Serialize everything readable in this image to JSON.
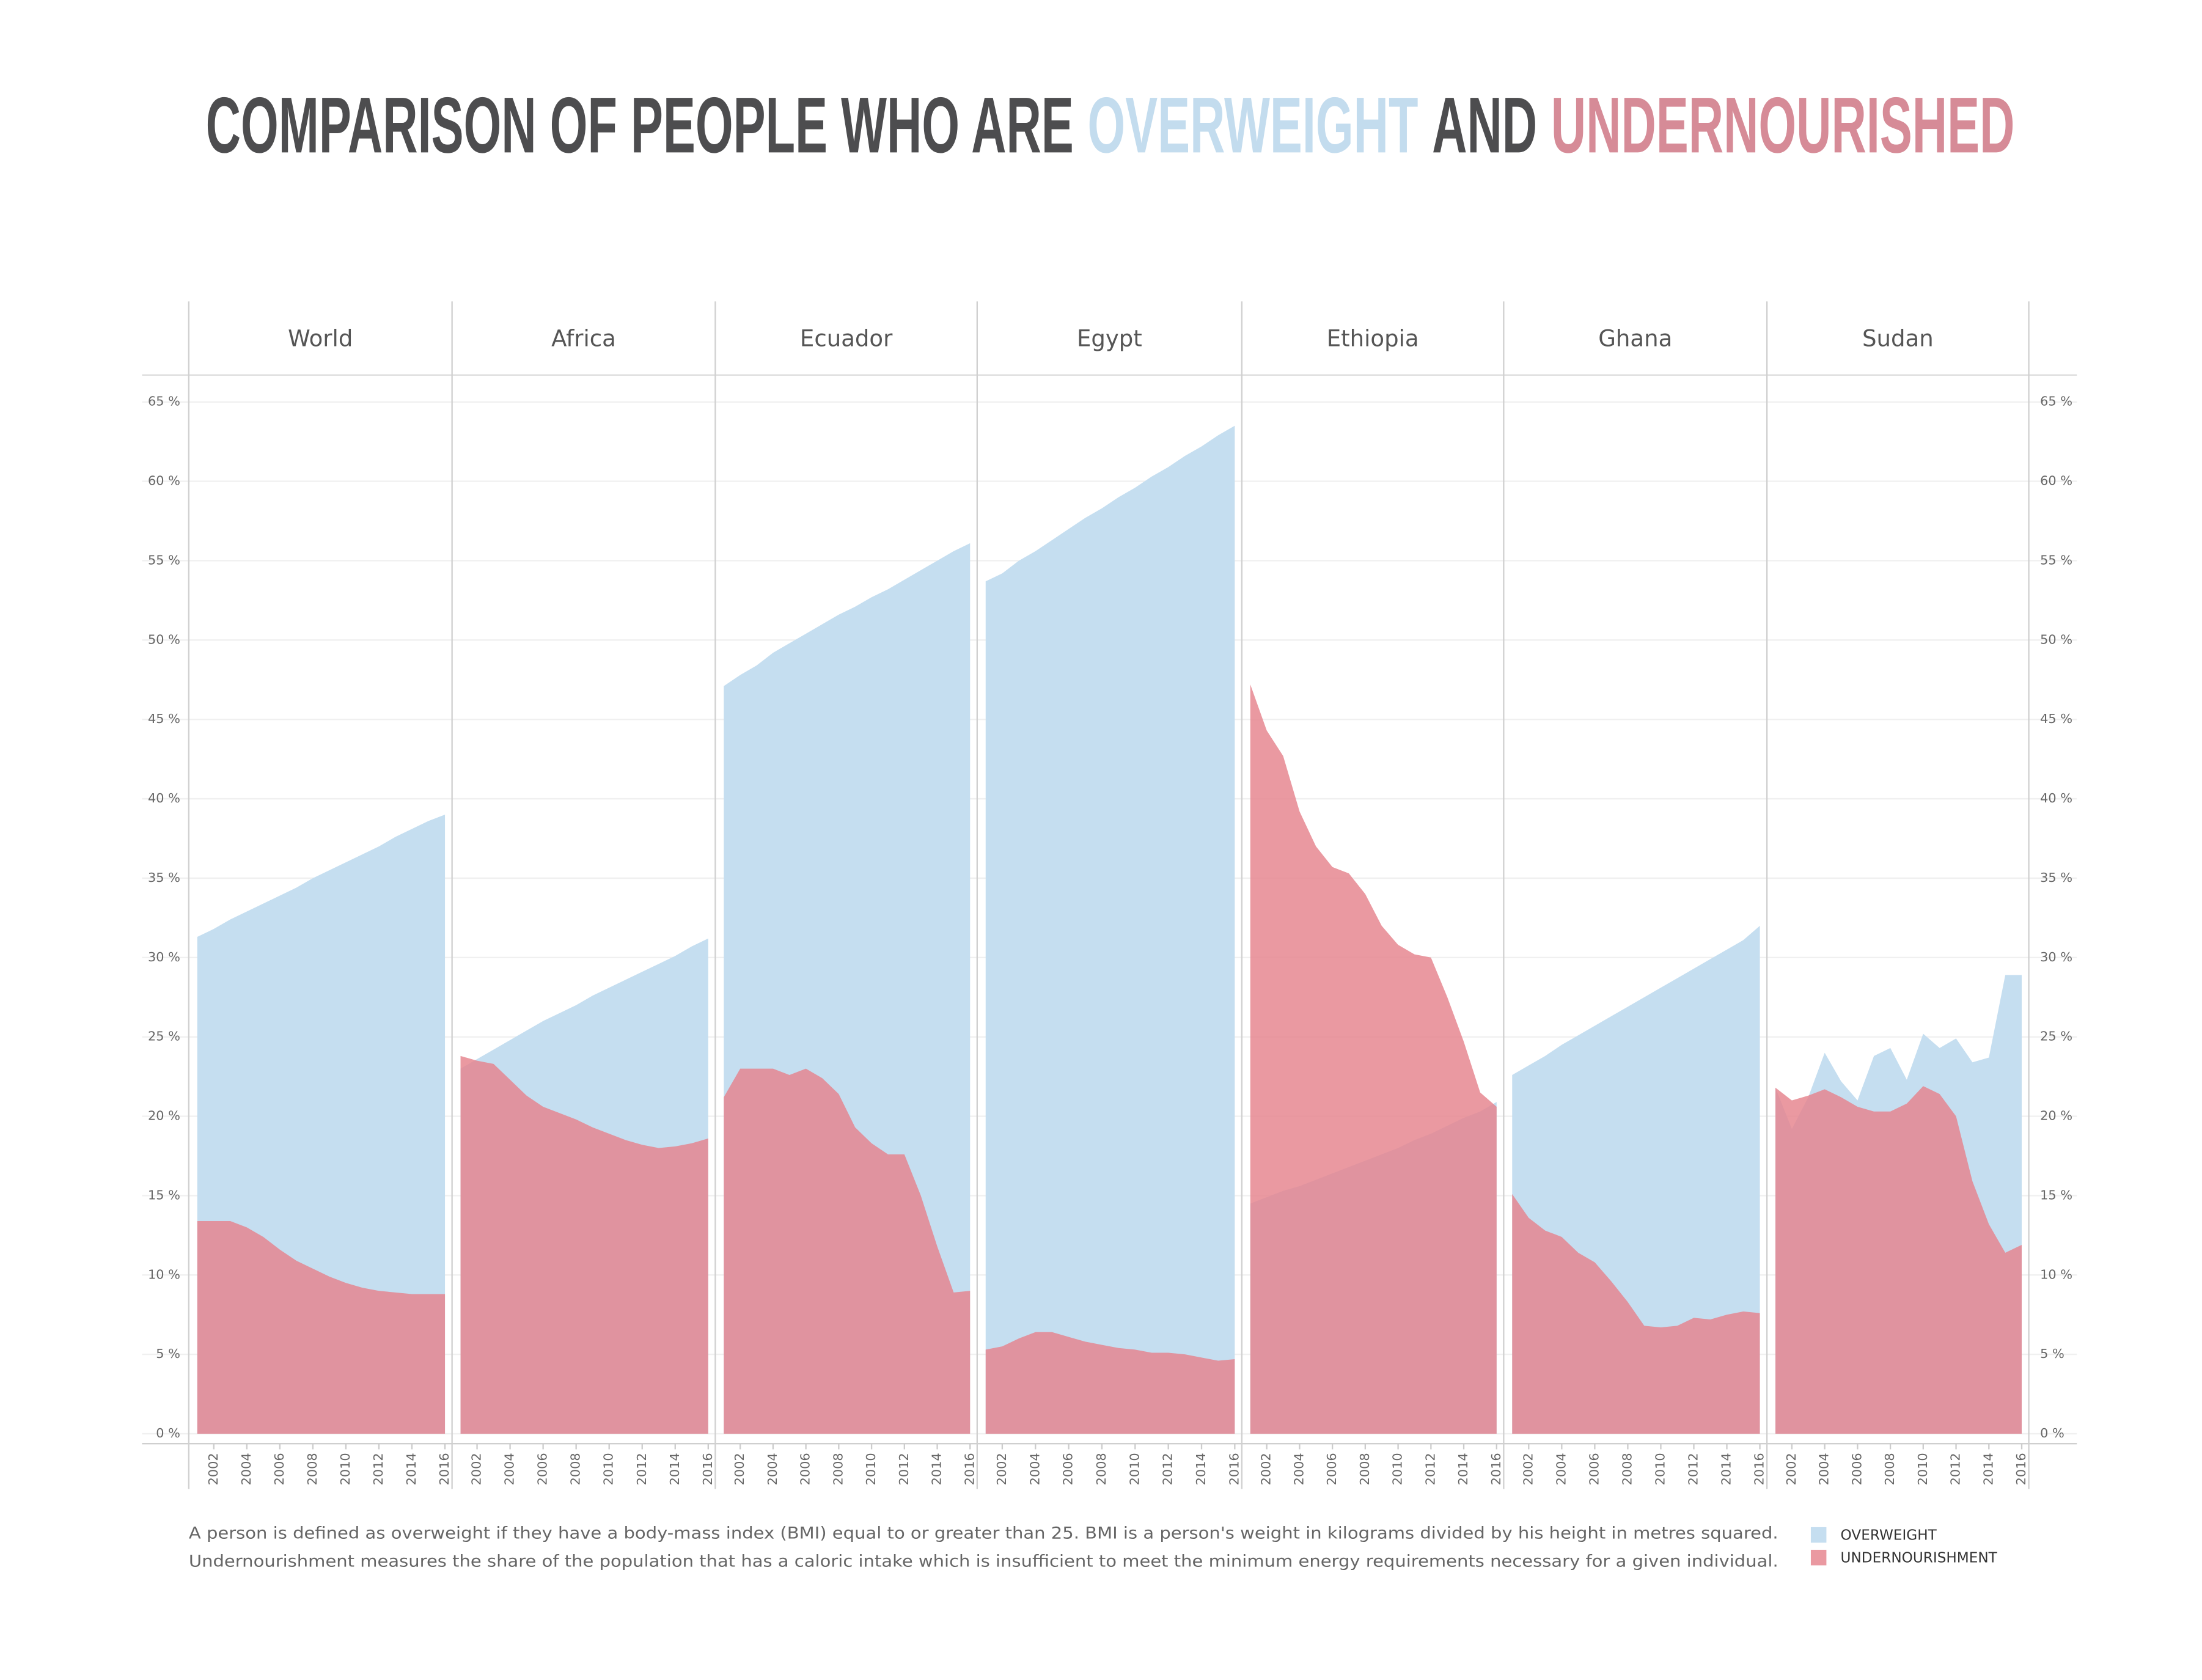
{
  "chart_data": {
    "type": "area",
    "title": [
      "COMPARISON OF PEOPLE WHO ARE",
      "OVERWEIGHT",
      "AND",
      "UNDERNOURISHED"
    ],
    "title_colors": [
      "#4d4d4f",
      "#c3dcee",
      "#4d4d4f",
      "#d68b97"
    ],
    "panels": [
      "World",
      "Africa",
      "Ecuador",
      "Egypt",
      "Ethiopia",
      "Ghana",
      "Sudan"
    ],
    "x": [
      2001,
      2002,
      2003,
      2004,
      2005,
      2006,
      2007,
      2008,
      2009,
      2010,
      2011,
      2012,
      2013,
      2014,
      2015,
      2016
    ],
    "xlim": [
      2001,
      2016
    ],
    "xticks": [
      2002,
      2004,
      2006,
      2008,
      2010,
      2012,
      2014,
      2016
    ],
    "ylim": [
      0,
      65
    ],
    "yticks": [
      {
        "value": 0,
        "label": "0 %"
      },
      {
        "value": 5,
        "label": "5 %"
      },
      {
        "value": 10,
        "label": "10 %"
      },
      {
        "value": 15,
        "label": "15 %"
      },
      {
        "value": 20,
        "label": "20 %"
      },
      {
        "value": 25,
        "label": "25 %"
      },
      {
        "value": 30,
        "label": "30 %"
      },
      {
        "value": 35,
        "label": "35 %"
      },
      {
        "value": 40,
        "label": "40 %"
      },
      {
        "value": 45,
        "label": "45 %"
      },
      {
        "value": 50,
        "label": "50 %"
      },
      {
        "value": 55,
        "label": "55 %"
      },
      {
        "value": 60,
        "label": "60 %"
      },
      {
        "value": 65,
        "label": "65 %"
      }
    ],
    "grid": true,
    "series": [
      {
        "name": "OVERWEIGHT",
        "color": "#c5def0",
        "opacity": 1,
        "values": [
          [
            31.3,
            31.8,
            32.4,
            32.9,
            33.4,
            33.9,
            34.4,
            35.0,
            35.5,
            36.0,
            36.5,
            37.0,
            37.6,
            38.1,
            38.6,
            39.0
          ],
          [
            23.0,
            23.6,
            24.2,
            24.8,
            25.4,
            26.0,
            26.5,
            27.0,
            27.6,
            28.1,
            28.6,
            29.1,
            29.6,
            30.1,
            30.7,
            31.2
          ],
          [
            47.1,
            47.8,
            48.4,
            49.2,
            49.8,
            50.4,
            51.0,
            51.6,
            52.1,
            52.7,
            53.2,
            53.8,
            54.4,
            55.0,
            55.6,
            56.1
          ],
          [
            53.7,
            54.2,
            55.0,
            55.6,
            56.3,
            57.0,
            57.7,
            58.3,
            59.0,
            59.6,
            60.3,
            60.9,
            61.6,
            62.2,
            62.9,
            63.5
          ],
          [
            14.5,
            14.9,
            15.3,
            15.6,
            16.0,
            16.4,
            16.8,
            17.2,
            17.6,
            18.0,
            18.5,
            18.9,
            19.4,
            19.9,
            20.3,
            20.9
          ],
          [
            22.6,
            23.2,
            23.8,
            24.5,
            25.1,
            25.7,
            26.3,
            26.9,
            27.5,
            28.1,
            28.7,
            29.3,
            29.9,
            30.5,
            31.1,
            32.0
          ],
          [
            21.8,
            19.2,
            21.2,
            24.0,
            22.2,
            21.0,
            23.8,
            24.3,
            22.3,
            25.2,
            24.3,
            24.9,
            23.4,
            23.7,
            28.9,
            28.9
          ]
        ]
      },
      {
        "name": "UNDERNOURISHMENT",
        "color": "#e5838c",
        "opacity": 0.82,
        "values": [
          [
            13.4,
            13.4,
            13.4,
            13.0,
            12.4,
            11.6,
            10.9,
            10.4,
            9.9,
            9.5,
            9.2,
            9.0,
            8.9,
            8.8,
            8.8,
            8.8
          ],
          [
            23.8,
            23.5,
            23.3,
            22.3,
            21.3,
            20.6,
            20.2,
            19.8,
            19.3,
            18.9,
            18.5,
            18.2,
            18.0,
            18.1,
            18.3,
            18.6
          ],
          [
            21.2,
            23.0,
            23.0,
            23.0,
            22.6,
            23.0,
            22.4,
            21.4,
            19.3,
            18.3,
            17.6,
            17.6,
            15.0,
            11.8,
            8.9,
            9.0
          ],
          [
            5.3,
            5.5,
            6.0,
            6.4,
            6.4,
            6.1,
            5.8,
            5.6,
            5.4,
            5.3,
            5.1,
            5.1,
            5.0,
            4.8,
            4.6,
            4.7
          ],
          [
            47.2,
            44.3,
            42.7,
            39.2,
            37.0,
            35.7,
            35.3,
            34.0,
            32.0,
            30.8,
            30.2,
            30.0,
            27.5,
            24.7,
            21.5,
            20.6
          ],
          [
            15.1,
            13.6,
            12.8,
            12.4,
            11.4,
            10.8,
            9.6,
            8.3,
            6.8,
            6.7,
            6.8,
            7.3,
            7.2,
            7.5,
            7.7,
            7.6
          ],
          [
            21.8,
            21.0,
            21.3,
            21.7,
            21.2,
            20.6,
            20.3,
            20.3,
            20.8,
            21.9,
            21.4,
            20.0,
            15.9,
            13.2,
            11.4,
            11.9
          ]
        ]
      }
    ],
    "note": [
      "A person is defined as overweight if they have a body-mass index (BMI) equal to or greater than 25. BMI is a person's weight in kilograms divided by his height in metres squared.",
      "Undernourishment measures the share of the population that has a caloric intake which is insufficient to meet the minimum energy requirements necessary for a given individual."
    ]
  }
}
